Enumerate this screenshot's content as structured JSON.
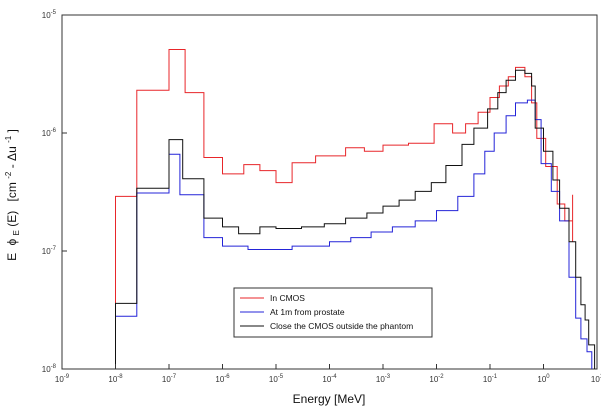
{
  "chart_data": {
    "type": "line",
    "title": "",
    "xlabel": "Energy  [MeV]",
    "ylabel": {
      "e": "E",
      "phi": "ϕ",
      "sub": "E",
      "arg": "(E)",
      "unit_open": "[cm",
      "exp1": "-2",
      "mid": " - Δu",
      "exp2": "-1",
      "unit_close": "]"
    },
    "x_scale": "log",
    "y_scale": "log",
    "xlim": [
      1e-09,
      10
    ],
    "ylim": [
      1e-08,
      1e-05
    ],
    "x_ticks": [
      {
        "value": 1e-09,
        "base": "10",
        "exp": "-9"
      },
      {
        "value": 1e-08,
        "base": "10",
        "exp": "-8"
      },
      {
        "value": 1e-07,
        "base": "10",
        "exp": "-7"
      },
      {
        "value": 1e-06,
        "base": "10",
        "exp": "-6"
      },
      {
        "value": 1e-05,
        "base": "10",
        "exp": "-5"
      },
      {
        "value": 0.0001,
        "base": "10",
        "exp": "-4"
      },
      {
        "value": 0.001,
        "base": "10",
        "exp": "-3"
      },
      {
        "value": 0.01,
        "base": "10",
        "exp": "-2"
      },
      {
        "value": 0.1,
        "base": "10",
        "exp": "-1"
      },
      {
        "value": 1,
        "base": "10",
        "exp": "0"
      },
      {
        "value": 10,
        "base": "10",
        "exp": "1"
      }
    ],
    "y_ticks": [
      {
        "value": 1e-08,
        "base": "10",
        "exp": "-8"
      },
      {
        "value": 1e-07,
        "base": "10",
        "exp": "-7"
      },
      {
        "value": 1e-06,
        "base": "10",
        "exp": "-6"
      },
      {
        "value": 1e-05,
        "base": "10",
        "exp": "-5"
      }
    ],
    "grid": false,
    "legend_position": "lower-center",
    "series": [
      {
        "name": "In CMOS",
        "color": "#e8262a",
        "points": [
          [
            1e-08,
            1e-08
          ],
          [
            1e-08,
            2.9e-07
          ],
          [
            2.5e-08,
            2.9e-07
          ],
          [
            2.5e-08,
            2.3e-06
          ],
          [
            1e-07,
            2.3e-06
          ],
          [
            1e-07,
            5.1e-06
          ],
          [
            2e-07,
            5.1e-06
          ],
          [
            2e-07,
            2.2e-06
          ],
          [
            4.5e-07,
            2.2e-06
          ],
          [
            4.5e-07,
            6.2e-07
          ],
          [
            1e-06,
            6.2e-07
          ],
          [
            1e-06,
            4.5e-07
          ],
          [
            2.5e-06,
            4.5e-07
          ],
          [
            2.5e-06,
            5.4e-07
          ],
          [
            5e-06,
            5.4e-07
          ],
          [
            5e-06,
            4.8e-07
          ],
          [
            1e-05,
            4.8e-07
          ],
          [
            1e-05,
            3.8e-07
          ],
          [
            2e-05,
            3.8e-07
          ],
          [
            2e-05,
            5.6e-07
          ],
          [
            5.5e-05,
            5.6e-07
          ],
          [
            5.5e-05,
            6.4e-07
          ],
          [
            0.0002,
            6.4e-07
          ],
          [
            0.0002,
            7.5e-07
          ],
          [
            0.00045,
            7.5e-07
          ],
          [
            0.00045,
            7e-07
          ],
          [
            0.001,
            7e-07
          ],
          [
            0.001,
            7.9e-07
          ],
          [
            0.003,
            7.9e-07
          ],
          [
            0.003,
            8.2e-07
          ],
          [
            0.009,
            8.2e-07
          ],
          [
            0.009,
            1.2e-06
          ],
          [
            0.02,
            1.2e-06
          ],
          [
            0.02,
            1e-06
          ],
          [
            0.035,
            1e-06
          ],
          [
            0.035,
            1.2e-06
          ],
          [
            0.06,
            1.2e-06
          ],
          [
            0.06,
            1.5e-06
          ],
          [
            0.1,
            1.5e-06
          ],
          [
            0.1,
            2e-06
          ],
          [
            0.15,
            2e-06
          ],
          [
            0.15,
            2.5e-06
          ],
          [
            0.22,
            2.5e-06
          ],
          [
            0.22,
            3e-06
          ],
          [
            0.3,
            3e-06
          ],
          [
            0.3,
            3.6e-06
          ],
          [
            0.45,
            3.6e-06
          ],
          [
            0.45,
            3e-06
          ],
          [
            0.6,
            3e-06
          ],
          [
            0.6,
            1.8e-06
          ],
          [
            0.75,
            1.8e-06
          ],
          [
            0.75,
            9e-07
          ],
          [
            1.1,
            9e-07
          ],
          [
            1.1,
            5.2e-07
          ],
          [
            1.8,
            5.2e-07
          ],
          [
            1.8,
            2.5e-07
          ],
          [
            2.5,
            2.5e-07
          ],
          [
            2.5,
            1.8e-07
          ],
          [
            3.5,
            1.8e-07
          ],
          [
            3.5,
            3e-07
          ],
          [
            3.5,
            1.2e-07
          ]
        ]
      },
      {
        "name": "At 1m from prostate",
        "color": "#2424d8",
        "points": [
          [
            1e-08,
            2.8e-08
          ],
          [
            2.5e-08,
            2.8e-08
          ],
          [
            2.5e-08,
            3.1e-07
          ],
          [
            1e-07,
            3.1e-07
          ],
          [
            1e-07,
            6.6e-07
          ],
          [
            1.6e-07,
            6.6e-07
          ],
          [
            1.6e-07,
            3e-07
          ],
          [
            4.5e-07,
            3e-07
          ],
          [
            4.5e-07,
            1.3e-07
          ],
          [
            1e-06,
            1.3e-07
          ],
          [
            1e-06,
            1.1e-07
          ],
          [
            3e-06,
            1.1e-07
          ],
          [
            3e-06,
            1.03e-07
          ],
          [
            2e-05,
            1.03e-07
          ],
          [
            2e-05,
            1.1e-07
          ],
          [
            0.0001,
            1.1e-07
          ],
          [
            0.0001,
            1.2e-07
          ],
          [
            0.00025,
            1.2e-07
          ],
          [
            0.00025,
            1.3e-07
          ],
          [
            0.0006,
            1.3e-07
          ],
          [
            0.0006,
            1.45e-07
          ],
          [
            0.0015,
            1.45e-07
          ],
          [
            0.0015,
            1.6e-07
          ],
          [
            0.004,
            1.6e-07
          ],
          [
            0.004,
            1.8e-07
          ],
          [
            0.01,
            1.8e-07
          ],
          [
            0.01,
            2.2e-07
          ],
          [
            0.025,
            2.2e-07
          ],
          [
            0.025,
            2.9e-07
          ],
          [
            0.05,
            2.9e-07
          ],
          [
            0.05,
            4.5e-07
          ],
          [
            0.08,
            4.5e-07
          ],
          [
            0.08,
            7e-07
          ],
          [
            0.12,
            7e-07
          ],
          [
            0.12,
            1e-06
          ],
          [
            0.2,
            1e-06
          ],
          [
            0.2,
            1.4e-06
          ],
          [
            0.3,
            1.4e-06
          ],
          [
            0.3,
            1.8e-06
          ],
          [
            0.5,
            1.8e-06
          ],
          [
            0.5,
            1.9e-06
          ],
          [
            0.7,
            1.9e-06
          ],
          [
            0.7,
            1.3e-06
          ],
          [
            0.9,
            1.3e-06
          ],
          [
            0.9,
            5.5e-07
          ],
          [
            1.4,
            5.5e-07
          ],
          [
            1.4,
            3.2e-07
          ],
          [
            2,
            3.2e-07
          ],
          [
            2,
            1.8e-07
          ],
          [
            3,
            1.8e-07
          ],
          [
            3,
            6e-08
          ],
          [
            4,
            6e-08
          ],
          [
            4,
            2.7e-08
          ],
          [
            5,
            2.7e-08
          ],
          [
            5,
            1.8e-08
          ],
          [
            6.5,
            1.8e-08
          ],
          [
            6.5,
            1.4e-08
          ],
          [
            8,
            1.4e-08
          ],
          [
            8,
            1e-08
          ]
        ]
      },
      {
        "name": "Close the CMOS outside the phantom",
        "color": "#111111",
        "points": [
          [
            1e-08,
            1e-08
          ],
          [
            1e-08,
            3.6e-08
          ],
          [
            2.5e-08,
            3.6e-08
          ],
          [
            2.5e-08,
            3.4e-07
          ],
          [
            1e-07,
            3.4e-07
          ],
          [
            1e-07,
            8.8e-07
          ],
          [
            1.8e-07,
            8.8e-07
          ],
          [
            1.8e-07,
            4.1e-07
          ],
          [
            4.5e-07,
            4.1e-07
          ],
          [
            4.5e-07,
            1.9e-07
          ],
          [
            1e-06,
            1.9e-07
          ],
          [
            1e-06,
            1.6e-07
          ],
          [
            2e-06,
            1.6e-07
          ],
          [
            2e-06,
            1.4e-07
          ],
          [
            5e-06,
            1.4e-07
          ],
          [
            5e-06,
            1.6e-07
          ],
          [
            1e-05,
            1.6e-07
          ],
          [
            1e-05,
            1.55e-07
          ],
          [
            3e-05,
            1.55e-07
          ],
          [
            3e-05,
            1.6e-07
          ],
          [
            8e-05,
            1.6e-07
          ],
          [
            8e-05,
            1.7e-07
          ],
          [
            0.0002,
            1.7e-07
          ],
          [
            0.0002,
            1.9e-07
          ],
          [
            0.0005,
            1.9e-07
          ],
          [
            0.0005,
            2.1e-07
          ],
          [
            0.001,
            2.1e-07
          ],
          [
            0.001,
            2.4e-07
          ],
          [
            0.002,
            2.4e-07
          ],
          [
            0.002,
            2.7e-07
          ],
          [
            0.004,
            2.7e-07
          ],
          [
            0.004,
            3.2e-07
          ],
          [
            0.008,
            3.2e-07
          ],
          [
            0.008,
            3.8e-07
          ],
          [
            0.015,
            3.8e-07
          ],
          [
            0.015,
            5.3e-07
          ],
          [
            0.03,
            5.3e-07
          ],
          [
            0.03,
            8e-07
          ],
          [
            0.05,
            8e-07
          ],
          [
            0.05,
            1.1e-06
          ],
          [
            0.09,
            1.1e-06
          ],
          [
            0.09,
            1.6e-06
          ],
          [
            0.14,
            1.6e-06
          ],
          [
            0.14,
            2.2e-06
          ],
          [
            0.2,
            2.2e-06
          ],
          [
            0.2,
            2.8e-06
          ],
          [
            0.3,
            2.8e-06
          ],
          [
            0.3,
            3.4e-06
          ],
          [
            0.45,
            3.4e-06
          ],
          [
            0.45,
            3.2e-06
          ],
          [
            0.6,
            3.2e-06
          ],
          [
            0.6,
            2.5e-06
          ],
          [
            0.7,
            2.5e-06
          ],
          [
            0.7,
            1.1e-06
          ],
          [
            1,
            1.1e-06
          ],
          [
            1,
            7e-07
          ],
          [
            1.5,
            7e-07
          ],
          [
            1.5,
            4e-07
          ],
          [
            2,
            4e-07
          ],
          [
            2,
            2.3e-07
          ],
          [
            3,
            2.3e-07
          ],
          [
            3,
            1.2e-07
          ],
          [
            4,
            1.2e-07
          ],
          [
            4,
            6e-08
          ],
          [
            5,
            6e-08
          ],
          [
            5,
            3.5e-08
          ],
          [
            6,
            3.5e-08
          ],
          [
            6,
            2.6e-08
          ],
          [
            7,
            2.6e-08
          ],
          [
            7,
            1.6e-08
          ],
          [
            9,
            1.6e-08
          ],
          [
            9,
            1e-08
          ]
        ]
      }
    ]
  }
}
